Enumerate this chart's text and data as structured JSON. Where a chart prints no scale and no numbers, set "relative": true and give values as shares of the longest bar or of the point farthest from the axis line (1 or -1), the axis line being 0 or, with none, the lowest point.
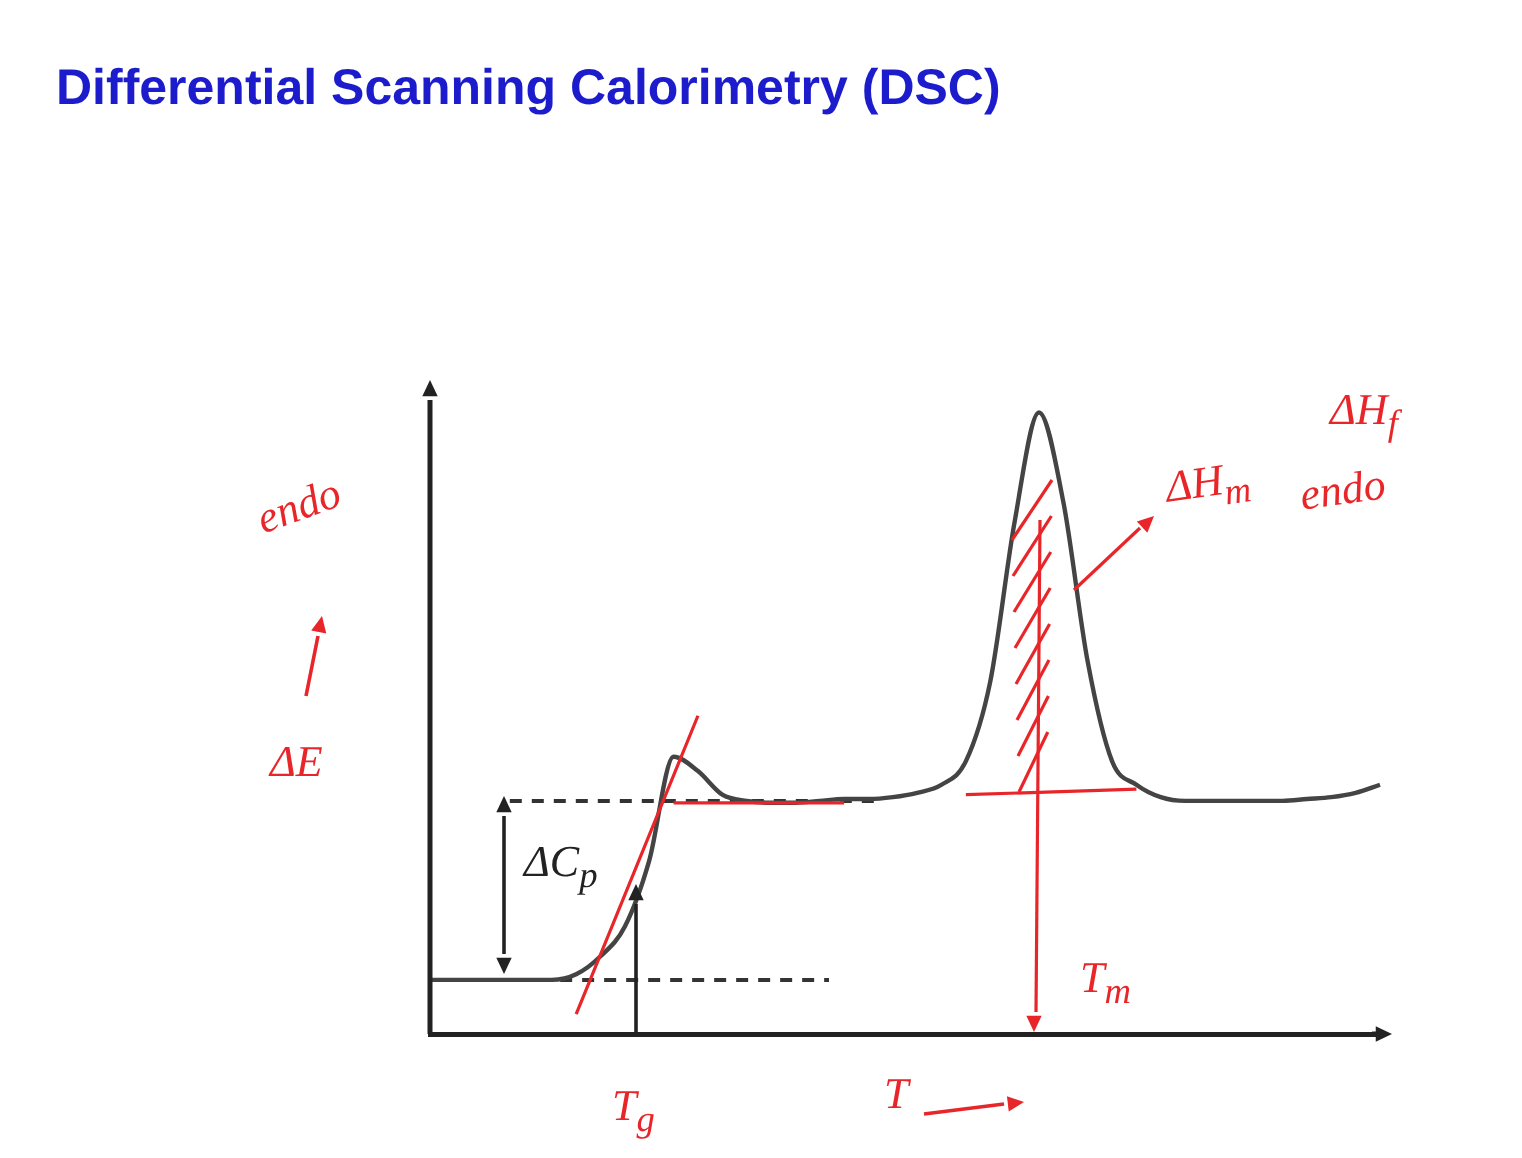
{
  "chart_data": {
    "type": "line",
    "relative": true,
    "title": "Differential Scanning Calorimetry (DSC)",
    "xlabel": "T",
    "ylabel": "ΔE",
    "annotations": [
      "endo",
      "ΔC$_{p}$",
      "T$_{g}$",
      "ΔH$_{m}$",
      "ΔH$_{f}$",
      "endo",
      "T$_{m}$"
    ],
    "categories": [
      null,
      null,
      null,
      null,
      null,
      null,
      null,
      null,
      null,
      null,
      null,
      null,
      null,
      null,
      null,
      null,
      null,
      null,
      null,
      null,
      null,
      null,
      null,
      null,
      null,
      null,
      null,
      null,
      null,
      null,
      null,
      null,
      null,
      null,
      null,
      null,
      null,
      null,
      null,
      null
    ],
    "series": [
      {
        "type": "line",
        "color": "#e8262a",
        "values": [
          null,
          null,
          null,
          null,
          null,
          null,
          0.032,
          null,
          null,
          null,
          null,
          0.512,
          null,
          null,
          null,
          null,
          null,
          null,
          null,
          null,
          null,
          null,
          null,
          null,
          null,
          null,
          null,
          null,
          null,
          null,
          null,
          null,
          null,
          null,
          null,
          null,
          null,
          null,
          null,
          null
        ]
      },
      {
        "type": "line",
        "color": "#e8262a",
        "values": [
          null,
          null,
          null,
          null,
          null,
          null,
          null,
          null,
          null,
          null,
          0.372,
          null,
          null,
          null,
          null,
          null,
          null,
          0.372,
          null,
          null,
          null,
          null,
          null,
          null,
          null,
          null,
          null,
          null,
          null,
          null,
          null,
          null,
          null,
          null,
          null,
          null,
          null,
          null,
          null,
          null
        ]
      },
      {
        "type": "line",
        "color": "#e8262a",
        "values": [
          null,
          null,
          null,
          null,
          null,
          null,
          null,
          null,
          null,
          null,
          null,
          null,
          null,
          null,
          null,
          null,
          null,
          null,
          null,
          null,
          null,
          null,
          0.385,
          null,
          null,
          null,
          null,
          null,
          null,
          0.394,
          null,
          null,
          null,
          null,
          null,
          null,
          null,
          null,
          null,
          null
        ]
      },
      {
        "color": "#444444",
        "values": [
          0.087,
          0.087,
          0.087,
          0.087,
          0.087,
          0.087,
          0.096,
          0.125,
          0.173,
          0.279,
          0.446,
          0.423,
          0.385,
          0.375,
          0.372,
          0.372,
          0.375,
          0.378,
          0.378,
          0.381,
          0.388,
          0.401,
          0.439,
          0.567,
          0.824,
          1,
          0.856,
          0.599,
          0.439,
          0.401,
          0.381,
          0.375,
          0.375,
          0.375,
          0.375,
          0.375,
          0.378,
          0.381,
          0.388,
          0.401
        ]
      }
    ],
    "ref_lines": [
      {
        "axis": "y",
        "value": 0.087,
        "color": "#333333",
        "line_style": "dashed"
      },
      {
        "axis": "y",
        "value": 0.375,
        "color": "#333333",
        "line_style": "dashed"
      }
    ],
    "marker": "none",
    "line_style": "solid",
    "grid": false,
    "legend": false
  }
}
